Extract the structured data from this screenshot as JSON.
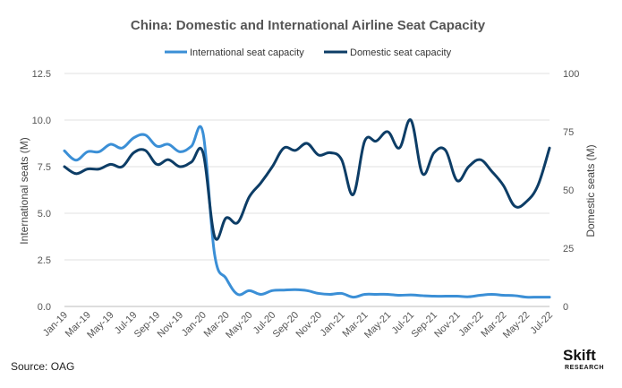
{
  "chart_data": {
    "type": "line",
    "title": "China: Domestic and International Airline Seat Capacity",
    "ylabel_left": "International seats (M)",
    "ylabel_right": "Domestic seats (M)",
    "ylim_left": [
      0,
      12.5
    ],
    "ylim_right": [
      0,
      100
    ],
    "yticks_left": [
      "0.0",
      "2.5",
      "5.0",
      "7.5",
      "10.0",
      "12.5"
    ],
    "yticks_right": [
      "0",
      "25",
      "50",
      "75",
      "100"
    ],
    "grid": "horizontal",
    "legend_position": "top-center",
    "x": [
      "Jan-19",
      "Feb-19",
      "Mar-19",
      "Apr-19",
      "May-19",
      "Jun-19",
      "Jul-19",
      "Aug-19",
      "Sep-19",
      "Oct-19",
      "Nov-19",
      "Dec-19",
      "Jan-20",
      "Feb-20",
      "Mar-20",
      "Apr-20",
      "May-20",
      "Jun-20",
      "Jul-20",
      "Aug-20",
      "Sep-20",
      "Oct-20",
      "Nov-20",
      "Dec-20",
      "Jan-21",
      "Feb-21",
      "Mar-21",
      "Apr-21",
      "May-21",
      "Jun-21",
      "Jul-21",
      "Aug-21",
      "Sep-21",
      "Oct-21",
      "Nov-21",
      "Dec-21",
      "Jan-22",
      "Feb-22",
      "Mar-22",
      "Apr-22",
      "May-22",
      "Jun-22",
      "Jul-22"
    ],
    "x_tick_labels": [
      "Jan-19",
      "Mar-19",
      "May-19",
      "Jul-19",
      "Sep-19",
      "Nov-19",
      "Jan-20",
      "Mar-20",
      "May-20",
      "Jul-20",
      "Sep-20",
      "Nov-20",
      "Jan-21",
      "Mar-21",
      "May-21",
      "Jul-21",
      "Sep-21",
      "Nov-21",
      "Jan-22",
      "Mar-22",
      "May-22",
      "Jul-22"
    ],
    "series": [
      {
        "name": "International seat capacity",
        "axis": "left",
        "color": "#3b8fd6",
        "values": [
          8.35,
          7.85,
          8.3,
          8.3,
          8.7,
          8.5,
          9.05,
          9.2,
          8.6,
          8.7,
          8.3,
          8.6,
          9.3,
          2.8,
          1.5,
          0.65,
          0.85,
          0.65,
          0.85,
          0.88,
          0.9,
          0.85,
          0.7,
          0.65,
          0.7,
          0.5,
          0.65,
          0.65,
          0.65,
          0.6,
          0.62,
          0.58,
          0.55,
          0.55,
          0.55,
          0.52,
          0.6,
          0.65,
          0.6,
          0.58,
          0.5,
          0.5,
          0.5
        ]
      },
      {
        "name": "Domestic seat capacity",
        "axis": "right",
        "color": "#0d3d66",
        "values": [
          60,
          57,
          59,
          59,
          61,
          60,
          66,
          67,
          61,
          63,
          60,
          62,
          66,
          30,
          38,
          36,
          47,
          53,
          60,
          68,
          67,
          70,
          65,
          66,
          63,
          48,
          71,
          71,
          75,
          68,
          80,
          57,
          66,
          67,
          54,
          60,
          63,
          58,
          52,
          43,
          45,
          52,
          68
        ]
      }
    ]
  },
  "source": "Source: OAG",
  "logo": {
    "main": "Skift",
    "sub": "RESEARCH"
  }
}
